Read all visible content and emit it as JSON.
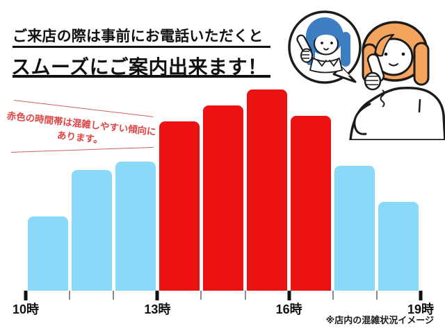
{
  "header": {
    "line1": "ご来店の際は事前にお電話いただくと",
    "line2": "スムーズにご案内出来ます！"
  },
  "annotation": {
    "line1": "赤色の時間帯は混雑しやすい傾向に",
    "line2": "あります。"
  },
  "footnote": "※店内の混雑状況イメージ",
  "colors": {
    "bar_blue": "#8AD9F8",
    "bar_red": "#EC1212",
    "annotation_red": "#E04343",
    "annotation_line_red": "#D06060",
    "text_black": "#111111",
    "clerk_hair_blue": "#3C7EC1",
    "customer_hair_orange": "#F5A45E",
    "outline_black": "#1B1B1B"
  },
  "illustration": {
    "description": "store clerk with blue hair inside a speech bubble talking on the phone with an orange-haired customer holding a telephone receiver"
  },
  "chart_data": {
    "type": "bar",
    "title": "",
    "xlabel": "",
    "ylabel": "",
    "ylim": [
      0,
      100
    ],
    "grid": false,
    "legend_position": "none",
    "x_tick_labels": [
      "10時",
      "13時",
      "16時",
      "19時"
    ],
    "x_tick_hours": [
      10,
      13,
      16,
      19
    ],
    "minor_tick_hours": [
      11,
      12,
      14,
      15,
      17,
      18
    ],
    "bars": [
      {
        "hour_start": 10,
        "hour_end": 11,
        "crowding_pct": 37,
        "color": "blue"
      },
      {
        "hour_start": 11,
        "hour_end": 12,
        "crowding_pct": 60,
        "color": "blue"
      },
      {
        "hour_start": 12,
        "hour_end": 13,
        "crowding_pct": 64,
        "color": "blue"
      },
      {
        "hour_start": 13,
        "hour_end": 14,
        "crowding_pct": 84,
        "color": "red"
      },
      {
        "hour_start": 14,
        "hour_end": 15,
        "crowding_pct": 92,
        "color": "red"
      },
      {
        "hour_start": 15,
        "hour_end": 16,
        "crowding_pct": 100,
        "color": "red"
      },
      {
        "hour_start": 16,
        "hour_end": 17,
        "crowding_pct": 87,
        "color": "red"
      },
      {
        "hour_start": 17,
        "hour_end": 18,
        "crowding_pct": 62,
        "color": "blue"
      },
      {
        "hour_start": 18,
        "hour_end": 19,
        "crowding_pct": 44,
        "color": "blue"
      }
    ]
  }
}
